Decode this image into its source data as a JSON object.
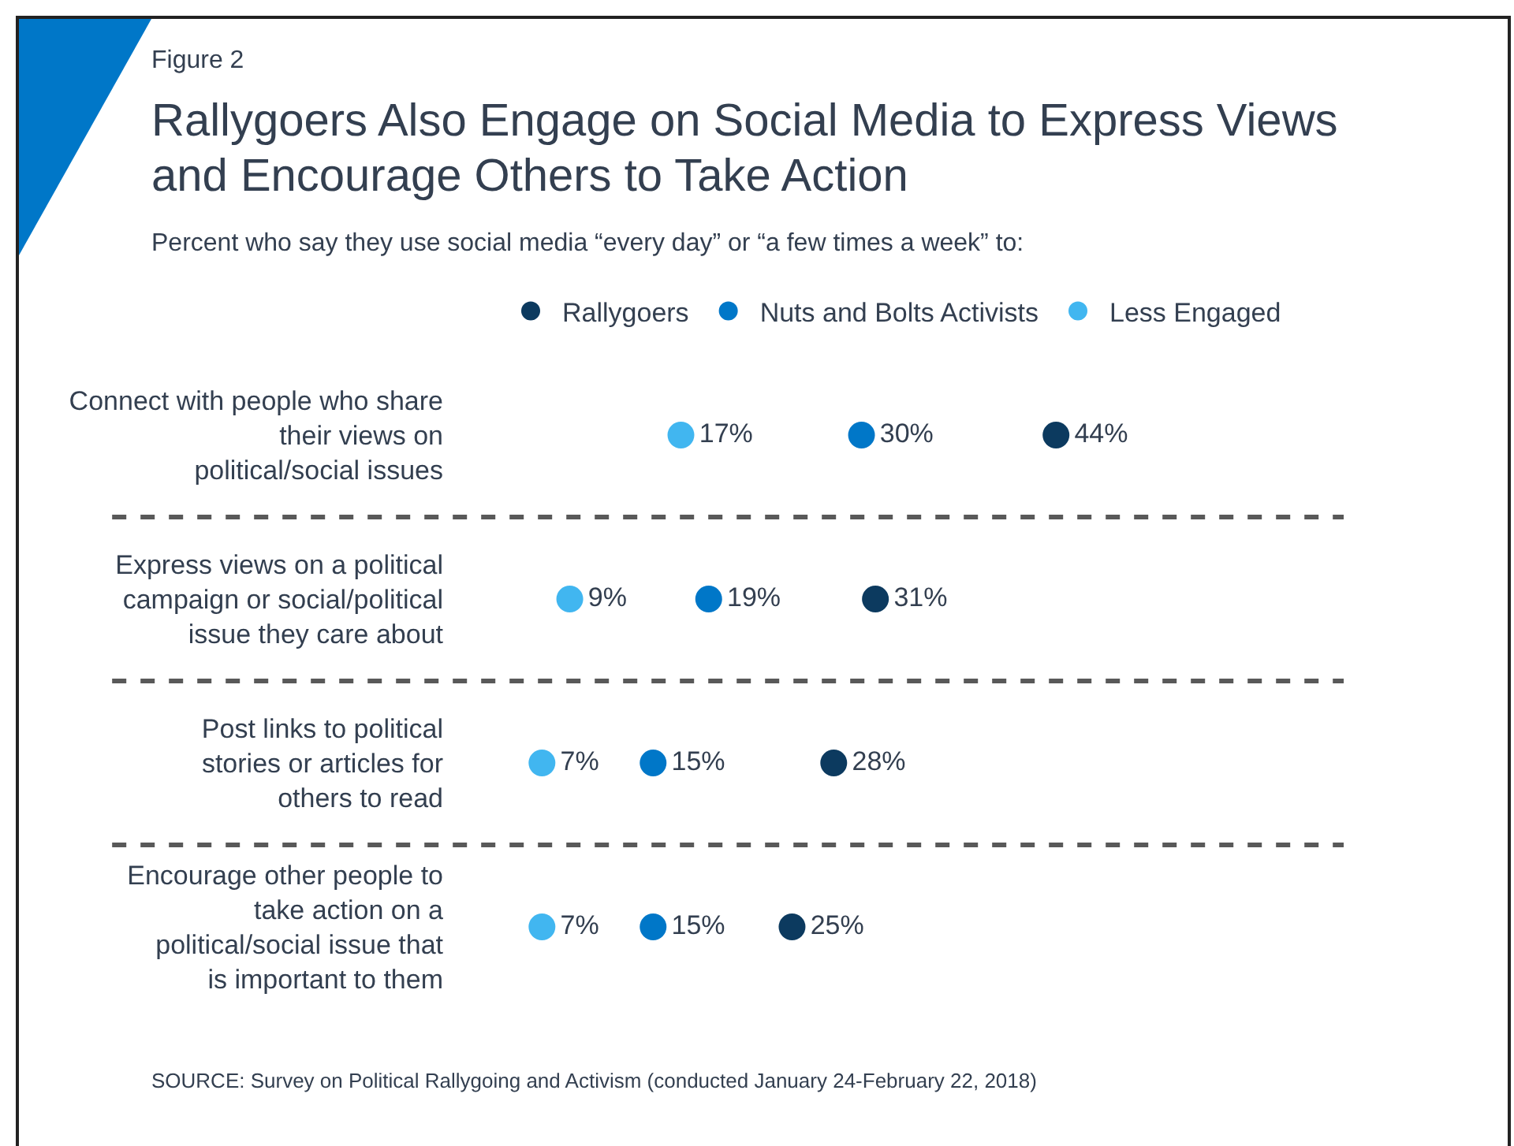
{
  "chart_data": {
    "type": "scatter",
    "orientation": "horizontal",
    "title": "Rallygoers Also Engage on Social Media to Express Views and Encourage Others to Take Action",
    "subtitle": "Percent who say they use social media “every day” or “a few times a week” to:",
    "annotations": [
      "Figure 2",
      "SOURCE: Survey on Political Rallygoing and Activism (conducted January 24-February 22, 2018)"
    ],
    "categories": [
      "Connect with people who share their views on political/social issues",
      "Express views on a political campaign or social/political issue they care about",
      "Post links to political stories or articles for others to read",
      "Encourage other people to take action on a political/social issue that is important to them"
    ],
    "series": [
      {
        "name": "Rallygoers",
        "color": "#0c3a5f",
        "values": [
          44,
          31,
          28,
          25
        ],
        "value_labels": [
          "44%",
          "31%",
          "28%",
          "25%"
        ]
      },
      {
        "name": "Nuts and Bolts Activists",
        "color": "#0077c8",
        "values": [
          30,
          19,
          15,
          15
        ],
        "value_labels": [
          "30%",
          "19%",
          "15%",
          "15%"
        ]
      },
      {
        "name": "Less Engaged",
        "color": "#41b6f0",
        "values": [
          17,
          9,
          7,
          7
        ],
        "value_labels": [
          "17%",
          "9%",
          "7%",
          "7%"
        ]
      }
    ],
    "marker": "circle",
    "legend": "top",
    "tick_labels": "y"
  }
}
